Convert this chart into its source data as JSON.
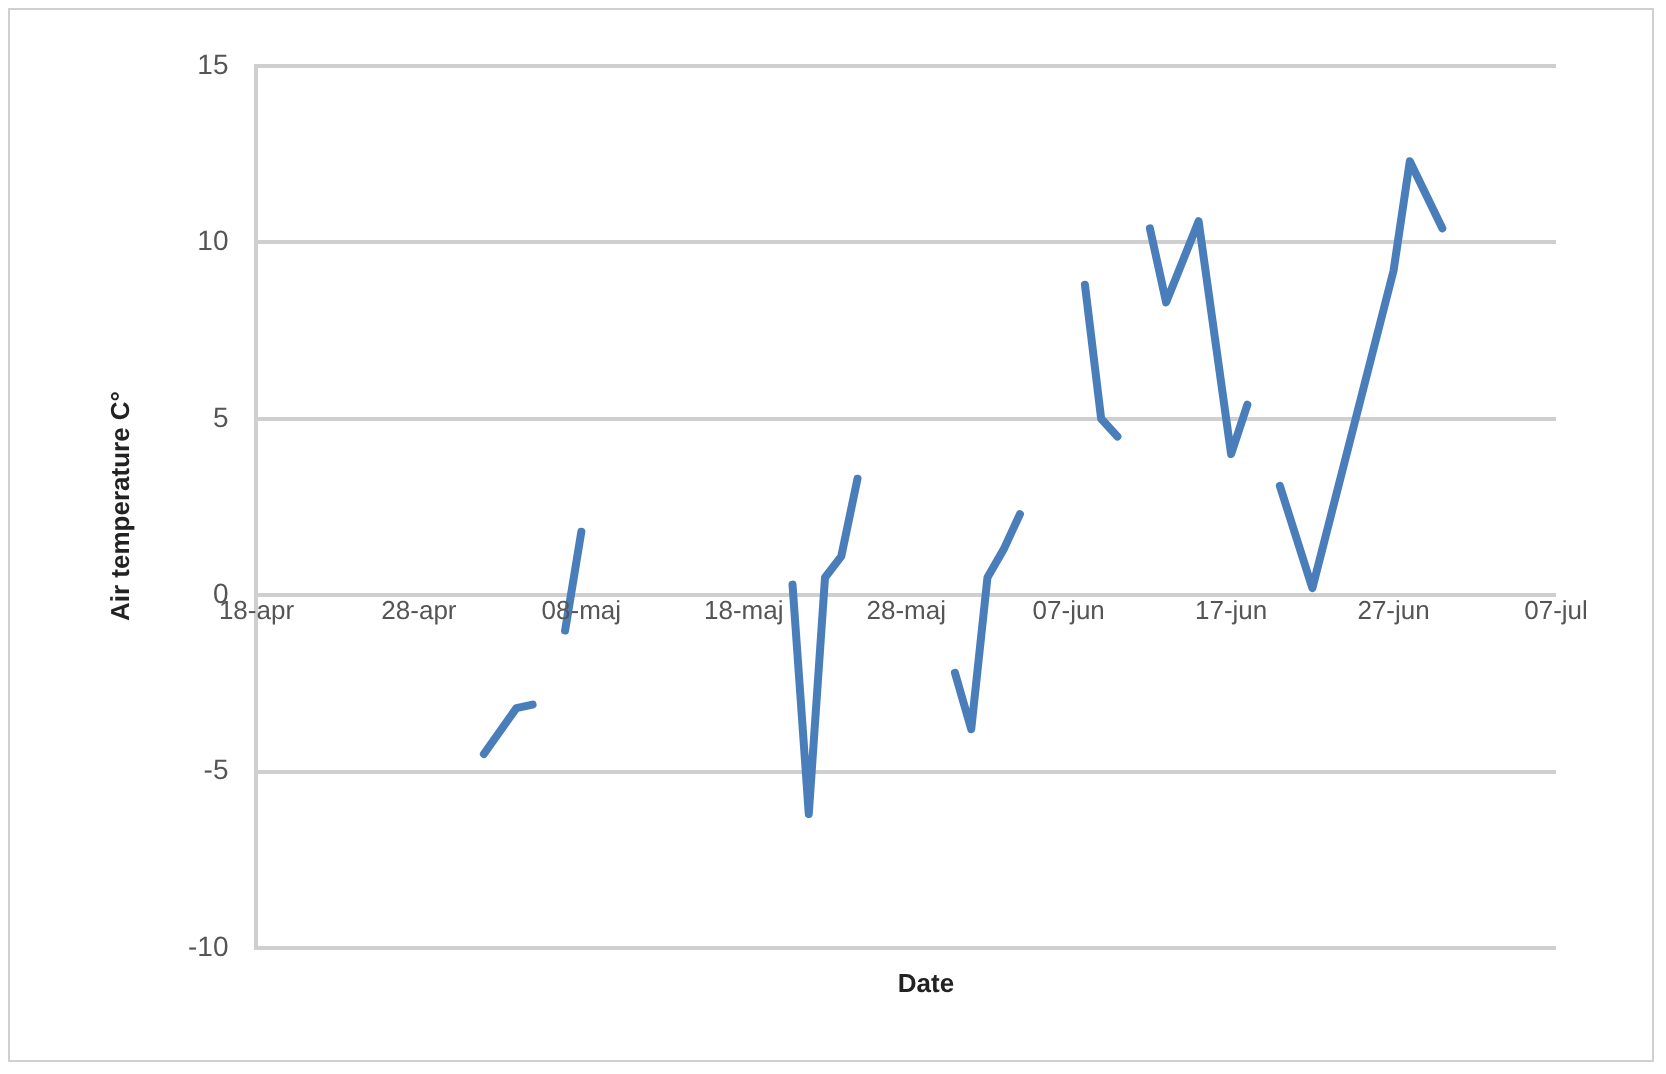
{
  "chart_data": {
    "type": "line",
    "xlabel": "Date",
    "ylabel": "Air temperature C°",
    "x": [
      "--05-02",
      "--05-04",
      "--05-05",
      "--05-06",
      "--05-07",
      "--05-08",
      "--05-15",
      "--05-21",
      "--05-22",
      "--05-23",
      "--05-24",
      "--05-25",
      "--05-28",
      "--05-31",
      "--06-01",
      "--06-02",
      "--06-03",
      "--06-04",
      "--06-06",
      "--06-08",
      "--06-09",
      "--06-10",
      "--06-11",
      "--06-12",
      "--06-13",
      "--06-15",
      "--06-17",
      "--06-18",
      "--06-19",
      "--06-20",
      "--06-22",
      "--06-25",
      "--06-27",
      "--06-28",
      "--06-30"
    ],
    "series": [
      {
        "color": "#4a7ebb",
        "values": [
          -4.5,
          -3.2,
          -3.1,
          null,
          -1.0,
          1.8,
          null,
          0.3,
          -6.2,
          0.5,
          1.1,
          3.3,
          null,
          -2.2,
          -3.8,
          0.5,
          1.3,
          2.3,
          null,
          8.8,
          5.0,
          4.5,
          null,
          10.4,
          8.3,
          10.6,
          4.0,
          5.4,
          null,
          3.1,
          0.2,
          5.6,
          9.2,
          12.3,
          10.4
        ]
      }
    ],
    "xlim": [
      "--04-18",
      "--07-07"
    ],
    "xticks": [
      {
        "value": "--04-18",
        "label": "18-apr"
      },
      {
        "value": "--04-28",
        "label": "28-apr"
      },
      {
        "value": "--05-08",
        "label": "08-maj"
      },
      {
        "value": "--05-18",
        "label": "18-maj"
      },
      {
        "value": "--05-28",
        "label": "28-maj"
      },
      {
        "value": "--06-07",
        "label": "07-jun"
      },
      {
        "value": "--06-17",
        "label": "17-jun"
      },
      {
        "value": "--06-27",
        "label": "27-jun"
      },
      {
        "value": "--07-07",
        "label": "07-jul"
      }
    ],
    "ylim": [
      -10,
      15
    ],
    "yticks": [
      -10,
      -5,
      0,
      5,
      10,
      15
    ],
    "grid": "y",
    "legend": false,
    "marker": "none",
    "line_style": "solid"
  }
}
